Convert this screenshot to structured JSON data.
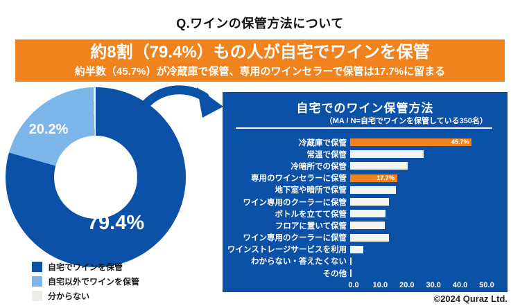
{
  "page": {
    "background": "#ffffff"
  },
  "header": {
    "title": "Q.ワインの保管方法について"
  },
  "banner": {
    "bg": "#F0831D",
    "headline": "約8割（79.4%）もの人が自宅でワインを保管",
    "subheadline": "約半数（45.7%）が冷蔵庫で保管、専用のワインセラーで保管は17.7%に留まる"
  },
  "legend": {
    "items": [
      {
        "label": "自宅でワインを保管",
        "color": "#0C51A8"
      },
      {
        "label": "自宅以外でワインを保管",
        "color": "#7CB5EA"
      },
      {
        "label": "分からない",
        "color": "#ECECE8"
      }
    ]
  },
  "panel": {
    "bg": "#0C51A8"
  },
  "arrow": {
    "color": "#0C51A8"
  },
  "footer": {
    "copyright": "©2024 Quraz Ltd."
  },
  "chart_data": [
    {
      "type": "pie",
      "donut": true,
      "slices": [
        {
          "label": "自宅でワインを保管",
          "value": 79.4,
          "color": "#0C51A8",
          "display_label": "79.4%"
        },
        {
          "label": "自宅以外でワインを保管",
          "value": 20.2,
          "color": "#7CB5EA",
          "display_label": "20.2%"
        },
        {
          "label": "分からない",
          "value": 0.4,
          "color": "#ECECE8",
          "display_label": ""
        }
      ],
      "start_angle_deg": 0,
      "direction": "clockwise",
      "legend_position": "bottom-left"
    },
    {
      "type": "bar",
      "orientation": "horizontal",
      "title": "自宅でのワイン保管方法",
      "subtitle": "（MA / N=自宅でワインを保管している350名）",
      "categories": [
        "冷蔵庫で保管",
        "常温で保管",
        "冷暗所での保管",
        "専用のワインセラーに保管",
        "地下室や暗所で保管",
        "ワイン専用のクーラーに保管",
        "ボトルを立てて保管",
        "フロアに置いて保管",
        "ワイン専用のクーラーに保管",
        "ワインストレージサービスを利用",
        "わからない・答えたくない",
        "その他"
      ],
      "values": [
        45.7,
        27.7,
        21.7,
        17.7,
        17.1,
        14.6,
        13.4,
        12.9,
        14.6,
        4.9,
        0.6,
        0.6
      ],
      "value_labels": [
        "45.7%",
        "",
        "",
        "17.7%",
        "",
        "",
        "",
        "",
        "",
        "",
        "",
        ""
      ],
      "highlight_indexes": [
        0,
        3
      ],
      "bar_color": "#F7F5EF",
      "highlight_color": "#F0831D",
      "xlim": [
        0,
        50
      ],
      "x_ticks": [
        "0.0",
        "10.0",
        "20.0",
        "30.0",
        "40.0",
        "50.0"
      ],
      "grid": false
    }
  ]
}
